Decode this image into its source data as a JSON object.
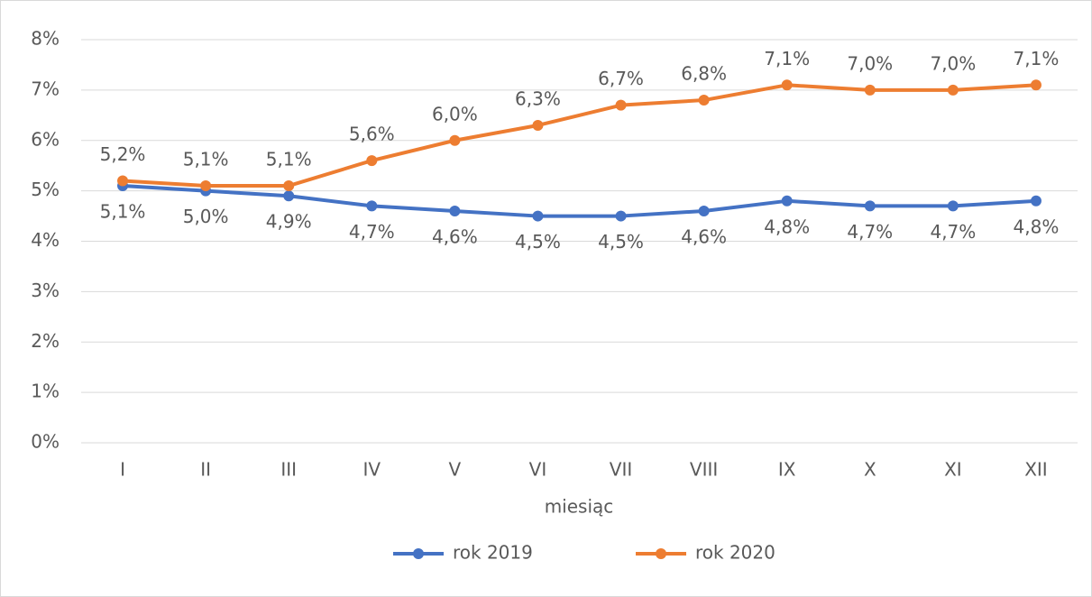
{
  "chart_data": {
    "type": "line",
    "x_label": "miesiąc",
    "categories": [
      "I",
      "II",
      "III",
      "IV",
      "V",
      "VI",
      "VII",
      "VIII",
      "IX",
      "X",
      "XI",
      "XII"
    ],
    "series": [
      {
        "name": "rok 2019",
        "color": "#4472c4",
        "values": [
          5.1,
          5.0,
          4.9,
          4.7,
          4.6,
          4.5,
          4.5,
          4.6,
          4.8,
          4.7,
          4.7,
          4.8
        ],
        "value_labels": [
          "5,1%",
          "5,0%",
          "4,9%",
          "4,7%",
          "4,6%",
          "4,5%",
          "4,5%",
          "4,6%",
          "4,8%",
          "4,7%",
          "4,7%",
          "4,8%"
        ]
      },
      {
        "name": "rok 2020",
        "color": "#ed7d31",
        "values": [
          5.2,
          5.1,
          5.1,
          5.6,
          6.0,
          6.3,
          6.7,
          6.8,
          7.1,
          7.0,
          7.0,
          7.1
        ],
        "value_labels": [
          "5,2%",
          "5,1%",
          "5,1%",
          "5,6%",
          "6,0%",
          "6,3%",
          "6,7%",
          "6,8%",
          "7,1%",
          "7,0%",
          "7,0%",
          "7,1%"
        ]
      }
    ],
    "ylim": [
      0,
      8
    ],
    "yticks": [
      {
        "value": 0,
        "label": "0%"
      },
      {
        "value": 1,
        "label": "1%"
      },
      {
        "value": 2,
        "label": "2%"
      },
      {
        "value": 3,
        "label": "3%"
      },
      {
        "value": 4,
        "label": "4%"
      },
      {
        "value": 5,
        "label": "5%"
      },
      {
        "value": 6,
        "label": "6%"
      },
      {
        "value": 7,
        "label": "7%"
      },
      {
        "value": 8,
        "label": "8%"
      }
    ],
    "grid": true,
    "legend": "bottom"
  }
}
